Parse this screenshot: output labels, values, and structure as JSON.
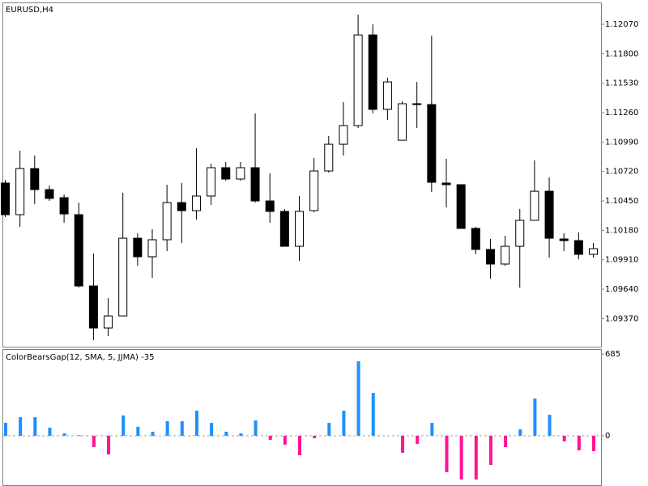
{
  "chart_data": [
    {
      "type": "candlestick",
      "title": "EURUSD,H4",
      "open": [
        1.10614,
        1.10324,
        1.10747,
        1.10554,
        1.1048,
        1.10324,
        1.0967,
        1.09284,
        1.09395,
        1.10108,
        1.09938,
        1.10094,
        1.10435,
        1.10361,
        1.10495,
        1.10755,
        1.10651,
        1.10755,
        1.1045,
        1.10354,
        1.10034,
        1.10361,
        1.10725,
        1.1097,
        1.11141,
        1.11973,
        1.1129,
        1.11007,
        1.11342,
        1.11334,
        1.10614,
        1.10599,
        1.10198,
        1.10005,
        1.09871,
        1.10034,
        1.10272,
        1.10539,
        1.10101,
        1.10086,
        1.0996
      ],
      "high": [
        1.10643,
        1.10911,
        1.10866,
        1.10591,
        1.1051,
        1.10435,
        1.09967,
        1.09559,
        1.10525,
        1.10153,
        1.1019,
        1.10599,
        1.10614,
        1.10933,
        1.10792,
        1.10807,
        1.10807,
        1.11253,
        1.10703,
        1.10376,
        1.10495,
        1.10844,
        1.11045,
        1.11357,
        1.12159,
        1.1207,
        1.1158,
        1.11364,
        1.11542,
        1.11966,
        1.10837,
        1.10599,
        1.10213,
        1.10101,
        1.10131,
        1.10376,
        1.10822,
        1.10666,
        1.10153,
        1.10161,
        1.10064
      ],
      "low": [
        1.10302,
        1.10213,
        1.10421,
        1.1045,
        1.1025,
        1.09655,
        1.09172,
        1.0921,
        1.09395,
        1.09856,
        1.09744,
        1.0999,
        1.10064,
        1.10279,
        1.10413,
        1.10636,
        1.10636,
        1.10435,
        1.1025,
        1.10034,
        1.099,
        1.10346,
        1.1071,
        1.10866,
        1.11119,
        1.11253,
        1.11193,
        1.11007,
        1.11119,
        1.10532,
        1.10391,
        1.10198,
        1.0996,
        1.09737,
        1.09856,
        1.09655,
        1.10272,
        1.0993,
        1.0999,
        1.09915,
        1.0993
      ],
      "close": [
        1.10324,
        1.10747,
        1.10554,
        1.10473,
        1.10331,
        1.0967,
        1.09284,
        1.09395,
        1.10108,
        1.09938,
        1.10094,
        1.10435,
        1.10361,
        1.10495,
        1.10755,
        1.10651,
        1.10755,
        1.1045,
        1.10354,
        1.10034,
        1.10354,
        1.10725,
        1.1097,
        1.11141,
        1.11973,
        1.1129,
        1.11542,
        1.11342,
        1.11334,
        1.10621,
        1.10599,
        1.10198,
        1.10005,
        1.09871,
        1.10034,
        1.10272,
        1.10539,
        1.10108,
        1.10086,
        1.0996,
        1.10012
      ],
      "up_color": "#ffffff",
      "down_color": "#000000",
      "ylim": [
        1.09113,
        1.12271
      ],
      "yticks": [
        {
          "value": 1.1207,
          "label": "1.12070"
        },
        {
          "value": 1.118,
          "label": "1.11800"
        },
        {
          "value": 1.1153,
          "label": "1.11530"
        },
        {
          "value": 1.1126,
          "label": "1.11260"
        },
        {
          "value": 1.1099,
          "label": "1.10990"
        },
        {
          "value": 1.1072,
          "label": "1.10720"
        },
        {
          "value": 1.1045,
          "label": "1.10450"
        },
        {
          "value": 1.1018,
          "label": "1.10180"
        },
        {
          "value": 1.0991,
          "label": "1.09910"
        },
        {
          "value": 1.0964,
          "label": "1.09640"
        },
        {
          "value": 1.0937,
          "label": "1.09370"
        }
      ]
    },
    {
      "type": "histogram",
      "title": "ColorBearsGap(12, SMA, 5, JJMA) -35",
      "values": [
        108,
        156,
        156,
        68,
        20,
        5,
        -95,
        -156,
        170,
        75,
        34,
        122,
        122,
        210,
        108,
        34,
        20,
        129,
        -34,
        -75,
        -163,
        -20,
        108,
        210,
        624,
        359,
        0,
        -142,
        -68,
        108,
        -305,
        -366,
        -366,
        -244,
        -95,
        54,
        312,
        176,
        -47,
        -122,
        -129
      ],
      "up_color": "#1e90ff",
      "down_color": "#ff1493",
      "ylim": [
        -407,
        726
      ],
      "yticks": [
        685,
        0
      ]
    }
  ]
}
